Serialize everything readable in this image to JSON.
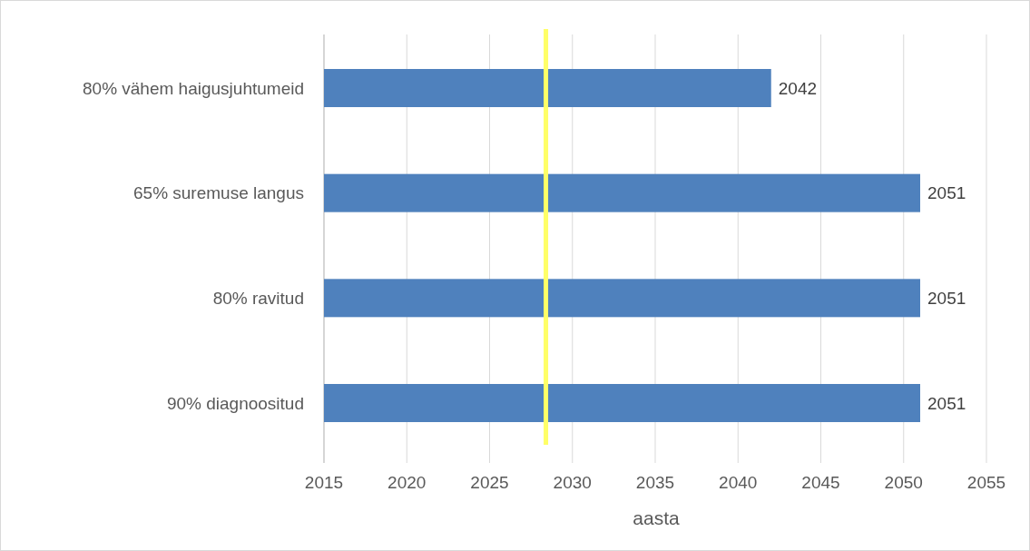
{
  "chart_data": {
    "type": "bar",
    "orientation": "horizontal",
    "xlabel": "aasta",
    "categories": [
      "80% vähem haigusjuhtumeid",
      "65% suremuse langus",
      "80% ravitud",
      "90% diagnoositud"
    ],
    "values": [
      2042,
      2051,
      2051,
      2051
    ],
    "color": "#4f81bd",
    "xlim": [
      2015,
      2055
    ],
    "xticks": [
      2015,
      2020,
      2025,
      2030,
      2035,
      2040,
      2045,
      2050,
      2055
    ],
    "grid": "x",
    "data_labels": true,
    "ref_lines": [
      {
        "axis": "x",
        "value": 2028.4,
        "color": "#ffff66"
      }
    ]
  }
}
